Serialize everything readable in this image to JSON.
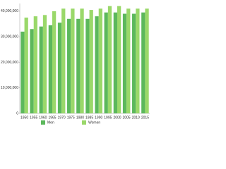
{
  "chart_data": {
    "type": "bar",
    "categories": [
      "1950",
      "1955",
      "1960",
      "1965",
      "1970",
      "1975",
      "1980",
      "1985",
      "1990",
      "1995",
      "2000",
      "2005",
      "2010",
      "2015"
    ],
    "series": [
      {
        "name": "Men",
        "color": "#5cb85c",
        "values": [
          32000000,
          33000000,
          34000000,
          34500000,
          35500000,
          37000000,
          37000000,
          37000000,
          38000000,
          39500000,
          39500000,
          39000000,
          39000000,
          39500000
        ]
      },
      {
        "name": "Women",
        "color": "#9ad86a",
        "values": [
          37500000,
          38000000,
          38500000,
          40000000,
          41000000,
          41000000,
          41000000,
          40500000,
          41000000,
          42000000,
          42000000,
          41000000,
          41000000,
          41000000
        ]
      }
    ],
    "ylim": [
      0,
      43000000
    ],
    "yticks": [
      {
        "value": 0,
        "label": "0"
      },
      {
        "value": 10000000,
        "label": "10,000,000"
      },
      {
        "value": 20000000,
        "label": "20,000,000"
      },
      {
        "value": 30000000,
        "label": "30,000,000"
      },
      {
        "value": 40000000,
        "label": "40,000,000"
      }
    ],
    "grid": false,
    "legend": "bottom"
  }
}
